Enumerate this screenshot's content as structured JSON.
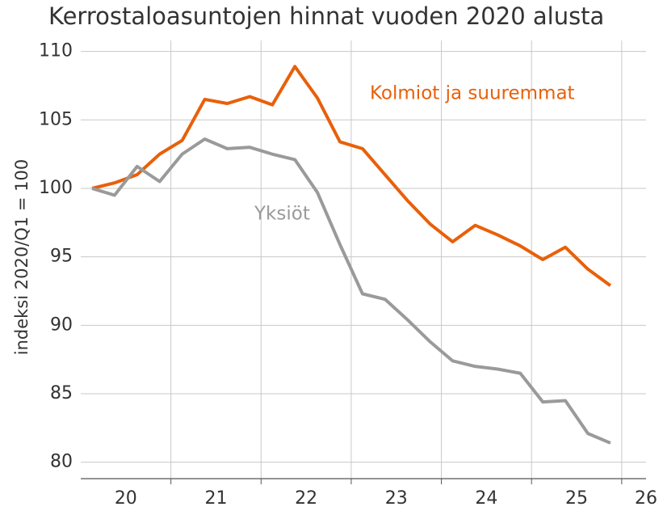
{
  "chart_data": {
    "type": "line",
    "title": "Kerrostaloasuntojen hinnat vuoden 2020 alusta",
    "y_label": "indeksi 2020/Q1 = 100",
    "x": [
      2020.125,
      2020.375,
      2020.625,
      2020.875,
      2021.125,
      2021.375,
      2021.625,
      2021.875,
      2022.125,
      2022.375,
      2022.625,
      2022.875,
      2023.125,
      2023.375,
      2023.625,
      2023.875,
      2024.125,
      2024.375,
      2024.625,
      2024.875,
      2025.125,
      2025.375,
      2025.625,
      2025.875
    ],
    "series": [
      {
        "name": "Kolmiot ja suuremmat",
        "color": "#e8600a",
        "values": [
          100.0,
          100.4,
          101.0,
          102.5,
          103.5,
          106.5,
          106.2,
          106.7,
          106.1,
          108.9,
          106.6,
          103.4,
          102.9,
          101.0,
          99.1,
          97.4,
          96.1,
          97.3,
          96.6,
          95.8,
          94.8,
          95.7,
          94.1,
          92.9
        ]
      },
      {
        "name": "Yksiöt",
        "color": "#9a9a9a",
        "values": [
          100.0,
          99.5,
          101.6,
          100.5,
          102.5,
          103.6,
          102.9,
          103.0,
          102.5,
          102.1,
          99.7,
          95.9,
          92.3,
          91.9,
          90.4,
          88.8,
          87.4,
          87.0,
          86.8,
          86.5,
          84.4,
          84.5,
          82.1,
          81.4
        ]
      }
    ],
    "xlim": [
      2020,
      2026.27
    ],
    "xticks": [
      {
        "value": 2020.5,
        "label": "20"
      },
      {
        "value": 2021.5,
        "label": "21"
      },
      {
        "value": 2022.5,
        "label": "22"
      },
      {
        "value": 2023.5,
        "label": "23"
      },
      {
        "value": 2024.5,
        "label": "24"
      },
      {
        "value": 2025.5,
        "label": "25"
      },
      {
        "value": 2026.27,
        "label": "26"
      }
    ],
    "xgrid": [
      2021,
      2022,
      2023,
      2024,
      2025,
      2026
    ],
    "ylim": [
      78.8,
      111.1
    ],
    "yticks": [
      80,
      85,
      90,
      95,
      100,
      105,
      110
    ],
    "grid": true
  }
}
